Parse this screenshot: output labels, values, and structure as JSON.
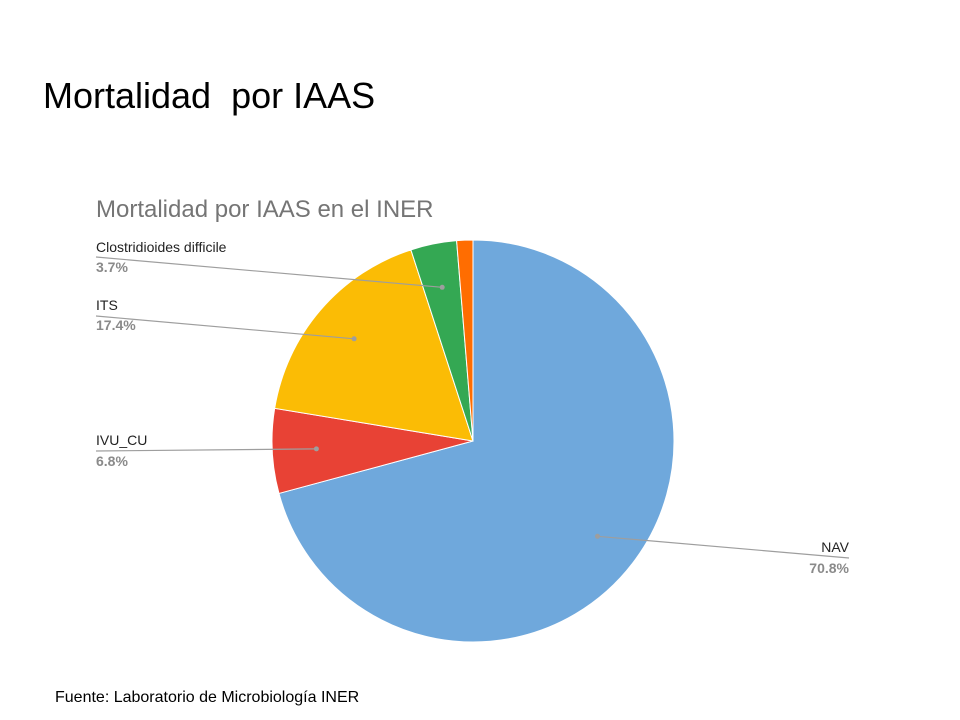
{
  "slide": {
    "title": "Mortalidad  por IAAS",
    "source": "Fuente: Laboratorio de Microbiología INER"
  },
  "chart_data": {
    "type": "pie",
    "title": "Mortalidad por IAAS en el INER",
    "slices": [
      {
        "name": "NAV",
        "value": 70.8,
        "label": "70.8%",
        "color": "#6fa8dc",
        "labeled": true,
        "label_side": "right"
      },
      {
        "name": "IVU_CU",
        "value": 6.8,
        "label": "6.8%",
        "color": "#e84235",
        "labeled": true,
        "label_side": "left"
      },
      {
        "name": "ITS",
        "value": 17.4,
        "label": "17.4%",
        "color": "#fbbc05",
        "labeled": true,
        "label_side": "left"
      },
      {
        "name": "Clostridioides difficile",
        "value": 3.7,
        "label": "3.7%",
        "color": "#34a853",
        "labeled": true,
        "label_side": "left"
      },
      {
        "name": "",
        "value": 1.3,
        "label": "",
        "color": "#ff6d01",
        "labeled": false,
        "label_side": ""
      }
    ],
    "start_position": "top, clockwise",
    "legend": "callout labels"
  }
}
